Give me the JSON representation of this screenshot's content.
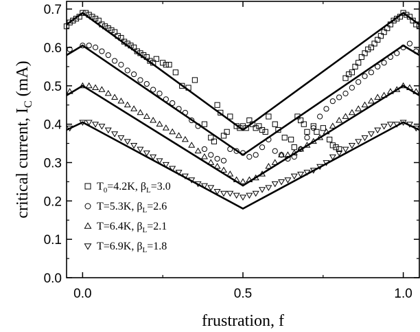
{
  "chart_data": {
    "type": "scatter",
    "xlabel": "frustration, f",
    "ylabel": "critical current, I",
    "ylabel_sub": "C",
    "ylabel_unit": " (mA)",
    "xlim": [
      -0.05,
      1.05
    ],
    "ylim": [
      0.0,
      0.72
    ],
    "xticks": [
      0.0,
      0.5,
      1.0
    ],
    "xtick_labels": [
      "0.0",
      "0.5",
      "1.0"
    ],
    "yticks": [
      0.0,
      0.1,
      0.2,
      0.3,
      0.4,
      0.5,
      0.6,
      0.7
    ],
    "ytick_labels": [
      "0.0",
      "0.1",
      "0.2",
      "0.3",
      "0.4",
      "0.5",
      "0.6",
      "0.7"
    ],
    "grid": false,
    "legend_position": "bottom-left",
    "legend": [
      {
        "marker": "square",
        "main": "T",
        "sub0": "0",
        "mid": "=4.2K, β",
        "sub1": "L",
        "tail": "=3.0"
      },
      {
        "marker": "circle",
        "main": "T",
        "sub0": "",
        "mid": "=5.3K, β",
        "sub1": "L",
        "tail": "=2.6"
      },
      {
        "marker": "triangle-up",
        "main": "T",
        "sub0": "",
        "mid": "=6.4K, β",
        "sub1": "L",
        "tail": "=2.1"
      },
      {
        "marker": "triangle-down",
        "main": "T",
        "sub0": "",
        "mid": "=6.9K, β",
        "sub1": "L",
        "tail": "=1.8"
      }
    ],
    "series": [
      {
        "marker": "square",
        "points": [
          [
            -0.05,
            0.655
          ],
          [
            -0.04,
            0.665
          ],
          [
            -0.03,
            0.67
          ],
          [
            -0.02,
            0.675
          ],
          [
            -0.01,
            0.68
          ],
          [
            0.0,
            0.69
          ],
          [
            0.01,
            0.69
          ],
          [
            0.02,
            0.685
          ],
          [
            0.03,
            0.68
          ],
          [
            0.04,
            0.675
          ],
          [
            0.05,
            0.67
          ],
          [
            0.06,
            0.66
          ],
          [
            0.07,
            0.655
          ],
          [
            0.08,
            0.65
          ],
          [
            0.09,
            0.645
          ],
          [
            0.1,
            0.64
          ],
          [
            0.11,
            0.63
          ],
          [
            0.12,
            0.625
          ],
          [
            0.13,
            0.615
          ],
          [
            0.14,
            0.61
          ],
          [
            0.15,
            0.605
          ],
          [
            0.16,
            0.6
          ],
          [
            0.17,
            0.59
          ],
          [
            0.18,
            0.585
          ],
          [
            0.19,
            0.58
          ],
          [
            0.2,
            0.575
          ],
          [
            0.21,
            0.565
          ],
          [
            0.22,
            0.56
          ],
          [
            0.23,
            0.57
          ],
          [
            0.25,
            0.56
          ],
          [
            0.26,
            0.555
          ],
          [
            0.27,
            0.555
          ],
          [
            0.29,
            0.535
          ],
          [
            0.31,
            0.5
          ],
          [
            0.33,
            0.495
          ],
          [
            0.35,
            0.515
          ],
          [
            0.38,
            0.4
          ],
          [
            0.4,
            0.365
          ],
          [
            0.41,
            0.355
          ],
          [
            0.42,
            0.45
          ],
          [
            0.43,
            0.43
          ],
          [
            0.44,
            0.37
          ],
          [
            0.45,
            0.38
          ],
          [
            0.46,
            0.42
          ],
          [
            0.48,
            0.395
          ],
          [
            0.49,
            0.39
          ],
          [
            0.5,
            0.395
          ],
          [
            0.51,
            0.39
          ],
          [
            0.52,
            0.41
          ],
          [
            0.53,
            0.4
          ],
          [
            0.54,
            0.39
          ],
          [
            0.55,
            0.395
          ],
          [
            0.56,
            0.385
          ],
          [
            0.57,
            0.38
          ],
          [
            0.58,
            0.42
          ],
          [
            0.6,
            0.4
          ],
          [
            0.61,
            0.385
          ],
          [
            0.63,
            0.365
          ],
          [
            0.65,
            0.36
          ],
          [
            0.66,
            0.34
          ],
          [
            0.67,
            0.42
          ],
          [
            0.68,
            0.41
          ],
          [
            0.69,
            0.4
          ],
          [
            0.7,
            0.38
          ],
          [
            0.72,
            0.395
          ],
          [
            0.73,
            0.38
          ],
          [
            0.75,
            0.39
          ],
          [
            0.77,
            0.36
          ],
          [
            0.78,
            0.345
          ],
          [
            0.79,
            0.34
          ],
          [
            0.8,
            0.335
          ],
          [
            0.82,
            0.52
          ],
          [
            0.83,
            0.53
          ],
          [
            0.84,
            0.535
          ],
          [
            0.85,
            0.55
          ],
          [
            0.86,
            0.56
          ],
          [
            0.87,
            0.575
          ],
          [
            0.88,
            0.585
          ],
          [
            0.89,
            0.595
          ],
          [
            0.9,
            0.6
          ],
          [
            0.91,
            0.61
          ],
          [
            0.92,
            0.62
          ],
          [
            0.93,
            0.63
          ],
          [
            0.94,
            0.64
          ],
          [
            0.95,
            0.65
          ],
          [
            0.96,
            0.66
          ],
          [
            0.97,
            0.67
          ],
          [
            0.98,
            0.675
          ],
          [
            0.99,
            0.68
          ],
          [
            1.0,
            0.69
          ],
          [
            1.01,
            0.685
          ],
          [
            1.02,
            0.68
          ],
          [
            1.03,
            0.67
          ],
          [
            1.04,
            0.66
          ],
          [
            1.05,
            0.655
          ]
        ]
      },
      {
        "marker": "circle",
        "points": [
          [
            -0.04,
            0.595
          ],
          [
            0.0,
            0.605
          ],
          [
            0.02,
            0.605
          ],
          [
            0.04,
            0.6
          ],
          [
            0.06,
            0.59
          ],
          [
            0.08,
            0.58
          ],
          [
            0.1,
            0.565
          ],
          [
            0.12,
            0.555
          ],
          [
            0.14,
            0.54
          ],
          [
            0.16,
            0.53
          ],
          [
            0.18,
            0.515
          ],
          [
            0.2,
            0.505
          ],
          [
            0.22,
            0.49
          ],
          [
            0.24,
            0.48
          ],
          [
            0.26,
            0.465
          ],
          [
            0.28,
            0.455
          ],
          [
            0.3,
            0.44
          ],
          [
            0.32,
            0.43
          ],
          [
            0.34,
            0.41
          ],
          [
            0.36,
            0.395
          ],
          [
            0.38,
            0.335
          ],
          [
            0.4,
            0.32
          ],
          [
            0.42,
            0.31
          ],
          [
            0.44,
            0.305
          ],
          [
            0.46,
            0.335
          ],
          [
            0.48,
            0.33
          ],
          [
            0.5,
            0.325
          ],
          [
            0.52,
            0.315
          ],
          [
            0.54,
            0.32
          ],
          [
            0.56,
            0.34
          ],
          [
            0.58,
            0.36
          ],
          [
            0.6,
            0.33
          ],
          [
            0.62,
            0.32
          ],
          [
            0.64,
            0.31
          ],
          [
            0.66,
            0.315
          ],
          [
            0.68,
            0.335
          ],
          [
            0.7,
            0.365
          ],
          [
            0.72,
            0.39
          ],
          [
            0.74,
            0.42
          ],
          [
            0.76,
            0.44
          ],
          [
            0.78,
            0.46
          ],
          [
            0.8,
            0.47
          ],
          [
            0.82,
            0.48
          ],
          [
            0.84,
            0.495
          ],
          [
            0.86,
            0.51
          ],
          [
            0.88,
            0.525
          ],
          [
            0.9,
            0.535
          ],
          [
            0.92,
            0.55
          ],
          [
            0.94,
            0.56
          ],
          [
            0.96,
            0.575
          ],
          [
            0.98,
            0.585
          ],
          [
            1.0,
            0.6
          ],
          [
            1.02,
            0.61
          ],
          [
            1.04,
            0.59
          ]
        ]
      },
      {
        "marker": "triangle-up",
        "points": [
          [
            -0.04,
            0.485
          ],
          [
            0.0,
            0.5
          ],
          [
            0.02,
            0.5
          ],
          [
            0.04,
            0.495
          ],
          [
            0.06,
            0.49
          ],
          [
            0.08,
            0.48
          ],
          [
            0.1,
            0.47
          ],
          [
            0.12,
            0.46
          ],
          [
            0.14,
            0.45
          ],
          [
            0.16,
            0.44
          ],
          [
            0.18,
            0.43
          ],
          [
            0.2,
            0.42
          ],
          [
            0.22,
            0.41
          ],
          [
            0.24,
            0.4
          ],
          [
            0.26,
            0.39
          ],
          [
            0.28,
            0.38
          ],
          [
            0.3,
            0.37
          ],
          [
            0.32,
            0.36
          ],
          [
            0.34,
            0.345
          ],
          [
            0.36,
            0.33
          ],
          [
            0.38,
            0.315
          ],
          [
            0.4,
            0.3
          ],
          [
            0.42,
            0.29
          ],
          [
            0.44,
            0.28
          ],
          [
            0.46,
            0.27
          ],
          [
            0.48,
            0.255
          ],
          [
            0.5,
            0.25
          ],
          [
            0.52,
            0.255
          ],
          [
            0.54,
            0.26
          ],
          [
            0.56,
            0.27
          ],
          [
            0.58,
            0.29
          ],
          [
            0.6,
            0.3
          ],
          [
            0.62,
            0.32
          ],
          [
            0.64,
            0.32
          ],
          [
            0.66,
            0.325
          ],
          [
            0.68,
            0.335
          ],
          [
            0.7,
            0.345
          ],
          [
            0.72,
            0.355
          ],
          [
            0.74,
            0.365
          ],
          [
            0.76,
            0.38
          ],
          [
            0.78,
            0.395
          ],
          [
            0.8,
            0.41
          ],
          [
            0.82,
            0.42
          ],
          [
            0.84,
            0.43
          ],
          [
            0.86,
            0.44
          ],
          [
            0.88,
            0.45
          ],
          [
            0.9,
            0.46
          ],
          [
            0.92,
            0.47
          ],
          [
            0.94,
            0.475
          ],
          [
            0.96,
            0.485
          ],
          [
            0.98,
            0.49
          ],
          [
            1.0,
            0.5
          ],
          [
            1.02,
            0.495
          ],
          [
            1.04,
            0.485
          ]
        ]
      },
      {
        "marker": "triangle-down",
        "points": [
          [
            -0.04,
            0.39
          ],
          [
            0.0,
            0.405
          ],
          [
            0.02,
            0.405
          ],
          [
            0.04,
            0.4
          ],
          [
            0.06,
            0.395
          ],
          [
            0.08,
            0.385
          ],
          [
            0.1,
            0.375
          ],
          [
            0.12,
            0.365
          ],
          [
            0.14,
            0.355
          ],
          [
            0.16,
            0.345
          ],
          [
            0.18,
            0.335
          ],
          [
            0.2,
            0.325
          ],
          [
            0.22,
            0.315
          ],
          [
            0.24,
            0.305
          ],
          [
            0.26,
            0.295
          ],
          [
            0.28,
            0.285
          ],
          [
            0.3,
            0.275
          ],
          [
            0.32,
            0.265
          ],
          [
            0.34,
            0.255
          ],
          [
            0.36,
            0.245
          ],
          [
            0.38,
            0.24
          ],
          [
            0.4,
            0.235
          ],
          [
            0.42,
            0.225
          ],
          [
            0.44,
            0.22
          ],
          [
            0.46,
            0.22
          ],
          [
            0.48,
            0.215
          ],
          [
            0.5,
            0.21
          ],
          [
            0.52,
            0.215
          ],
          [
            0.54,
            0.22
          ],
          [
            0.56,
            0.23
          ],
          [
            0.58,
            0.235
          ],
          [
            0.6,
            0.245
          ],
          [
            0.62,
            0.25
          ],
          [
            0.64,
            0.255
          ],
          [
            0.66,
            0.265
          ],
          [
            0.68,
            0.27
          ],
          [
            0.7,
            0.275
          ],
          [
            0.72,
            0.28
          ],
          [
            0.74,
            0.29
          ],
          [
            0.76,
            0.3
          ],
          [
            0.78,
            0.315
          ],
          [
            0.8,
            0.325
          ],
          [
            0.82,
            0.335
          ],
          [
            0.84,
            0.345
          ],
          [
            0.86,
            0.355
          ],
          [
            0.88,
            0.365
          ],
          [
            0.9,
            0.375
          ],
          [
            0.92,
            0.385
          ],
          [
            0.94,
            0.395
          ],
          [
            0.96,
            0.4
          ],
          [
            0.98,
            0.4
          ],
          [
            1.0,
            0.405
          ],
          [
            1.02,
            0.4
          ],
          [
            1.04,
            0.39
          ]
        ]
      }
    ],
    "theory_curves": [
      {
        "points": [
          [
            -0.05,
            0.66
          ],
          [
            0.0,
            0.69
          ],
          [
            0.5,
            0.385
          ],
          [
            1.0,
            0.69
          ],
          [
            1.05,
            0.66
          ]
        ]
      },
      {
        "points": [
          [
            -0.05,
            0.58
          ],
          [
            0.0,
            0.605
          ],
          [
            0.5,
            0.32
          ],
          [
            1.0,
            0.605
          ],
          [
            1.05,
            0.58
          ]
        ]
      },
      {
        "points": [
          [
            -0.05,
            0.475
          ],
          [
            0.0,
            0.5
          ],
          [
            0.5,
            0.24
          ],
          [
            1.0,
            0.5
          ],
          [
            1.05,
            0.475
          ]
        ]
      },
      {
        "points": [
          [
            -0.05,
            0.385
          ],
          [
            0.0,
            0.405
          ],
          [
            0.5,
            0.18
          ],
          [
            1.0,
            0.405
          ],
          [
            1.05,
            0.385
          ]
        ]
      }
    ]
  }
}
